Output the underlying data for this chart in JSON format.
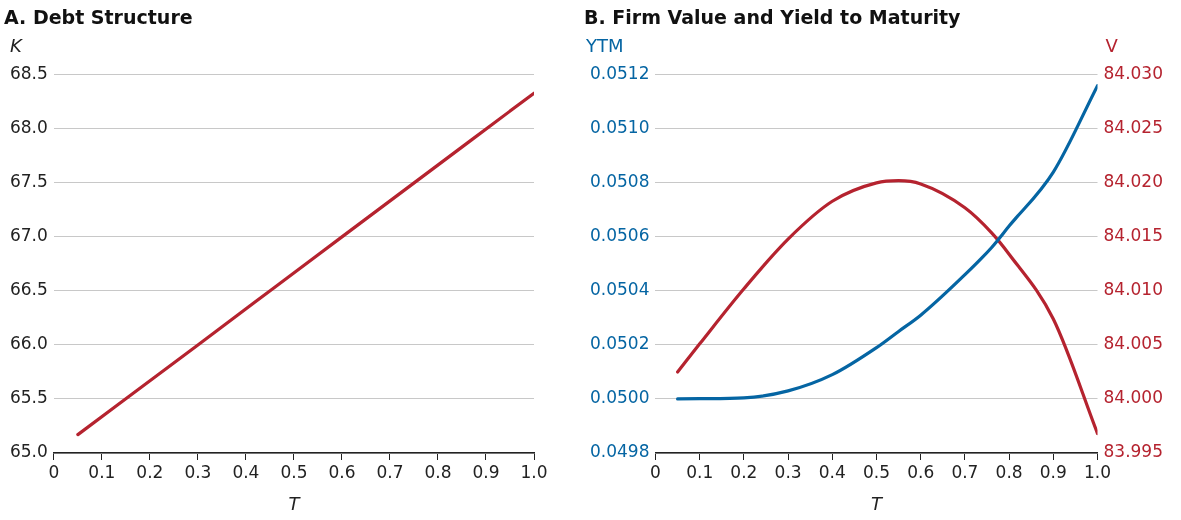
{
  "chart_data": [
    {
      "type": "line",
      "title": "A. Debt Structure",
      "xlabel": "T",
      "ylabel": "K",
      "grid": "y",
      "legend": false,
      "x": [
        0.05,
        0.3,
        0.6,
        1.0
      ],
      "series": [
        {
          "color": "#b5232f",
          "values": [
            65.17,
            66.0,
            67.0,
            68.33
          ]
        }
      ],
      "xlim": [
        0,
        1
      ],
      "xticks": [
        0,
        0.1,
        0.2,
        0.3,
        0.4,
        0.5,
        0.6,
        0.7,
        0.8,
        0.9,
        {
          "value": 1,
          "label": "1.0"
        }
      ],
      "ylim": [
        65,
        68.5
      ],
      "yticks": [
        {
          "value": 65,
          "label": "65.0"
        },
        65.5,
        {
          "value": 66,
          "label": "66.0"
        },
        66.5,
        {
          "value": 67,
          "label": "67.0"
        },
        67.5,
        {
          "value": 68,
          "label": "68.0"
        },
        68.5
      ]
    },
    {
      "type": "line",
      "title": "B. Firm Value and Yield to Maturity",
      "xlabel": "T",
      "ylabel": "YTM",
      "y2label": "V",
      "grid": "y",
      "legend": false,
      "x": [
        0.05,
        0.1,
        0.2,
        0.3,
        0.4,
        0.5,
        0.55,
        0.6,
        0.7,
        0.76,
        0.8,
        0.9,
        1.0
      ],
      "series": [
        {
          "color": "#0565a3",
          "axis": "y",
          "values": [
            0.05,
            0.050001,
            0.050004,
            0.05003,
            0.05009,
            0.05019,
            0.05025,
            0.05031,
            0.05046,
            0.05056,
            0.05064,
            0.05084,
            0.05116
          ]
        },
        {
          "color": "#b5232f",
          "axis": "y2",
          "values": [
            84.0025,
            84.0051,
            84.0102,
            84.0148,
            84.0183,
            84.02,
            84.0202,
            84.0199,
            84.0177,
            84.0154,
            84.0134,
            84.0074,
            83.9968
          ]
        }
      ],
      "xlim": [
        0,
        1
      ],
      "xticks": [
        0,
        0.1,
        0.2,
        0.3,
        0.4,
        0.5,
        0.6,
        0.7,
        0.8,
        0.9,
        {
          "value": 1,
          "label": "1.0"
        }
      ],
      "ylim": [
        0.0498,
        0.0512
      ],
      "yticks": [
        0.0498,
        {
          "value": 0.05,
          "label": "0.0500"
        },
        0.0502,
        0.0504,
        0.0506,
        0.0508,
        {
          "value": 0.051,
          "label": "0.0510"
        },
        0.0512
      ],
      "y2lim": [
        83.995,
        84.03
      ],
      "y2ticks": [
        83.995,
        {
          "value": 84,
          "label": "84.000"
        },
        84.005,
        {
          "value": 84.01,
          "label": "84.010"
        },
        84.015,
        {
          "value": 84.02,
          "label": "84.020"
        },
        84.025,
        {
          "value": 84.03,
          "label": "84.030"
        }
      ]
    }
  ]
}
